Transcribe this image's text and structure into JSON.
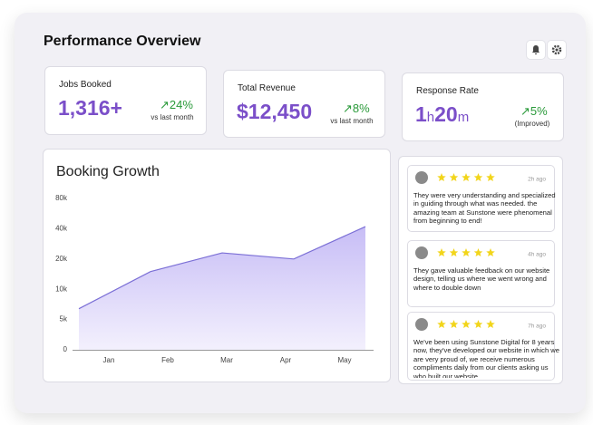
{
  "header": {
    "title": "Performance Overview"
  },
  "stats": [
    {
      "label": "Jobs Booked",
      "value": "1,316+",
      "change": "24%",
      "note": "vs last month"
    },
    {
      "label": "Total Revenue",
      "value": "$12,450",
      "change": "8%",
      "note": "vs last month"
    },
    {
      "label": "Response Rate",
      "value_parts": [
        "1",
        "h",
        "20",
        "m"
      ],
      "change": "5%",
      "note": "(Improved)"
    }
  ],
  "chart_data": {
    "type": "area",
    "title": "Booking Growth",
    "categories": [
      "Jan",
      "Feb",
      "Mar",
      "Apr",
      "May"
    ],
    "values": [
      6400,
      15000,
      23000,
      20000,
      42000
    ],
    "color": "#7b6fd6",
    "log_scale": true,
    "ylim": [
      2500,
      80000
    ],
    "yticks": [
      0,
      {
        "value": 5000,
        "label": "5k"
      },
      {
        "value": 10000,
        "label": "10k"
      },
      {
        "value": 20000,
        "label": "20k"
      },
      {
        "value": 40000,
        "label": "40k"
      },
      {
        "value": 80000,
        "label": "80k"
      }
    ]
  },
  "reviews": [
    {
      "time": "2h ago",
      "text": "They were very understanding and specialized in guiding through what was needed. the amazing team at Sunstone were phenomenal from beginning to end!"
    },
    {
      "time": "4h ago",
      "text": "They gave valuable feedback on our website design, telling us where we went wrong and where to double down"
    },
    {
      "time": "7h ago",
      "text": "We've been using Sunstone Digital for 8 years now, they've developed our website in which we are very proud of, we receive numerous compliments daily from our clients asking us who built our website"
    }
  ]
}
